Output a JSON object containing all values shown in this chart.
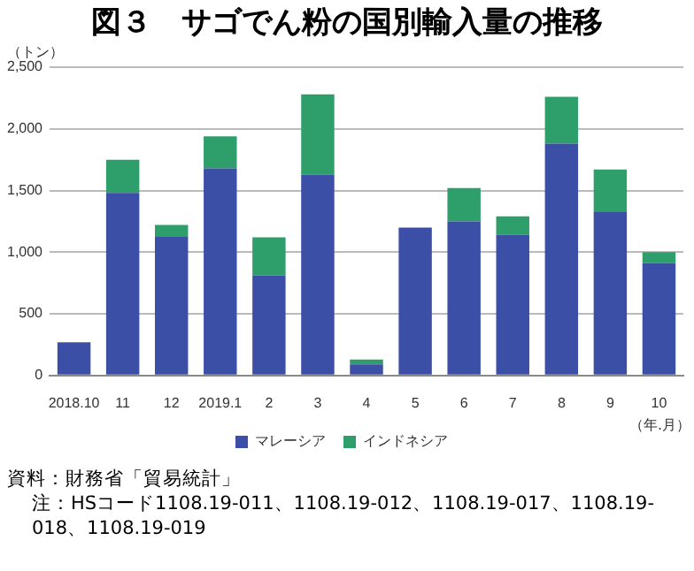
{
  "chart_data": {
    "type": "bar",
    "title": "図３　サゴでん粉の国別輸入量の推移",
    "ylabel": "（トン）",
    "xlabel": "（年.月）",
    "categories": [
      "2018.10",
      "11",
      "12",
      "2019.1",
      "2",
      "3",
      "4",
      "5",
      "6",
      "7",
      "8",
      "9",
      "10"
    ],
    "series": [
      {
        "name": "マレーシア",
        "color": "#3a4fa5",
        "values": [
          270,
          1480,
          1130,
          1680,
          810,
          1630,
          90,
          1200,
          1250,
          1140,
          1880,
          1330,
          910
        ]
      },
      {
        "name": "インドネシア",
        "color": "#2e9e6a",
        "values": [
          0,
          270,
          90,
          260,
          310,
          650,
          40,
          0,
          270,
          150,
          380,
          340,
          90
        ]
      }
    ],
    "stacked": true,
    "ylim": [
      0,
      2500
    ],
    "yticks": [
      0,
      500,
      {
        "value": 1000,
        "label": "1,000"
      },
      {
        "value": 1500,
        "label": "1,500"
      },
      {
        "value": 2000,
        "label": "2,000"
      },
      {
        "value": 2500,
        "label": "2,500"
      }
    ],
    "grid": "y",
    "legend": "bottom",
    "annotations": [
      "資料：財務省「貿易統計」",
      "注：HSコード1108.19-011、1108.19-012、1108.19-017、1108.19-018、1108.19-019"
    ]
  }
}
